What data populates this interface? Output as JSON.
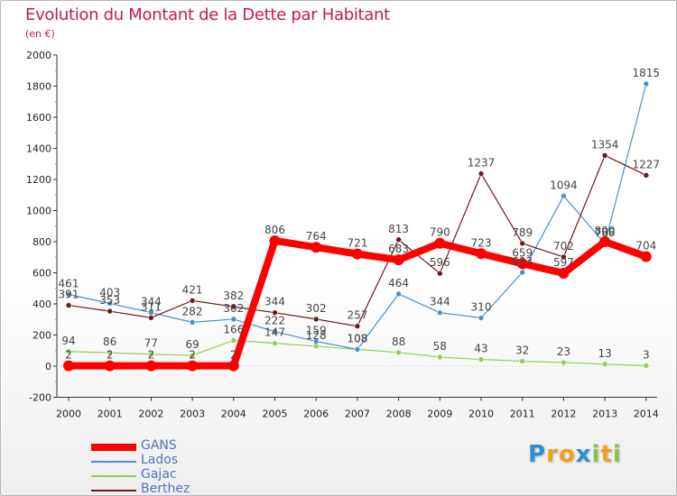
{
  "title": "Evolution du Montant de la Dette par Habitant",
  "unit": "(en €)",
  "logo": {
    "letters": [
      {
        "ch": "P",
        "color": "#2f8fd0"
      },
      {
        "ch": "r",
        "color": "#f0a020"
      },
      {
        "ch": "o",
        "color": "#f0a020"
      },
      {
        "ch": "x",
        "color": "#2f8fd0"
      },
      {
        "ch": "i",
        "color": "#8bc34a"
      },
      {
        "ch": "t",
        "color": "#f0a020"
      },
      {
        "ch": "i",
        "color": "#8bc34a"
      }
    ]
  },
  "chart_data": {
    "type": "line",
    "x": [
      "2000",
      "2001",
      "2002",
      "2003",
      "2004",
      "2005",
      "2006",
      "2007",
      "2008",
      "2009",
      "2010",
      "2011",
      "2012",
      "2013",
      "2014"
    ],
    "ylim": [
      -200,
      2000
    ],
    "yticks": [
      -200,
      0,
      200,
      400,
      600,
      800,
      1000,
      1200,
      1400,
      1600,
      1800,
      2000
    ],
    "grid": false,
    "legend_position": "bottom-left",
    "series": [
      {
        "name": "GANS",
        "color": "#ff0000",
        "values": [
          2,
          2,
          2,
          2,
          2,
          806,
          764,
          721,
          683,
          790,
          723,
          659,
          597,
          800,
          704
        ]
      },
      {
        "name": "Lados",
        "color": "#4a90c8",
        "values": [
          461,
          403,
          344,
          282,
          302,
          222,
          159,
          108,
          464,
          344,
          310,
          603,
          1094,
          788,
          1815
        ]
      },
      {
        "name": "Gajac",
        "color": "#8ed05a",
        "values": [
          94,
          86,
          77,
          69,
          166,
          147,
          128,
          108,
          88,
          58,
          43,
          32,
          23,
          13,
          3
        ]
      },
      {
        "name": "Berthez",
        "color": "#6b1a1a",
        "values": [
          391,
          353,
          311,
          421,
          382,
          344,
          302,
          257,
          813,
          596,
          1237,
          789,
          702,
          1354,
          1227
        ]
      }
    ]
  }
}
